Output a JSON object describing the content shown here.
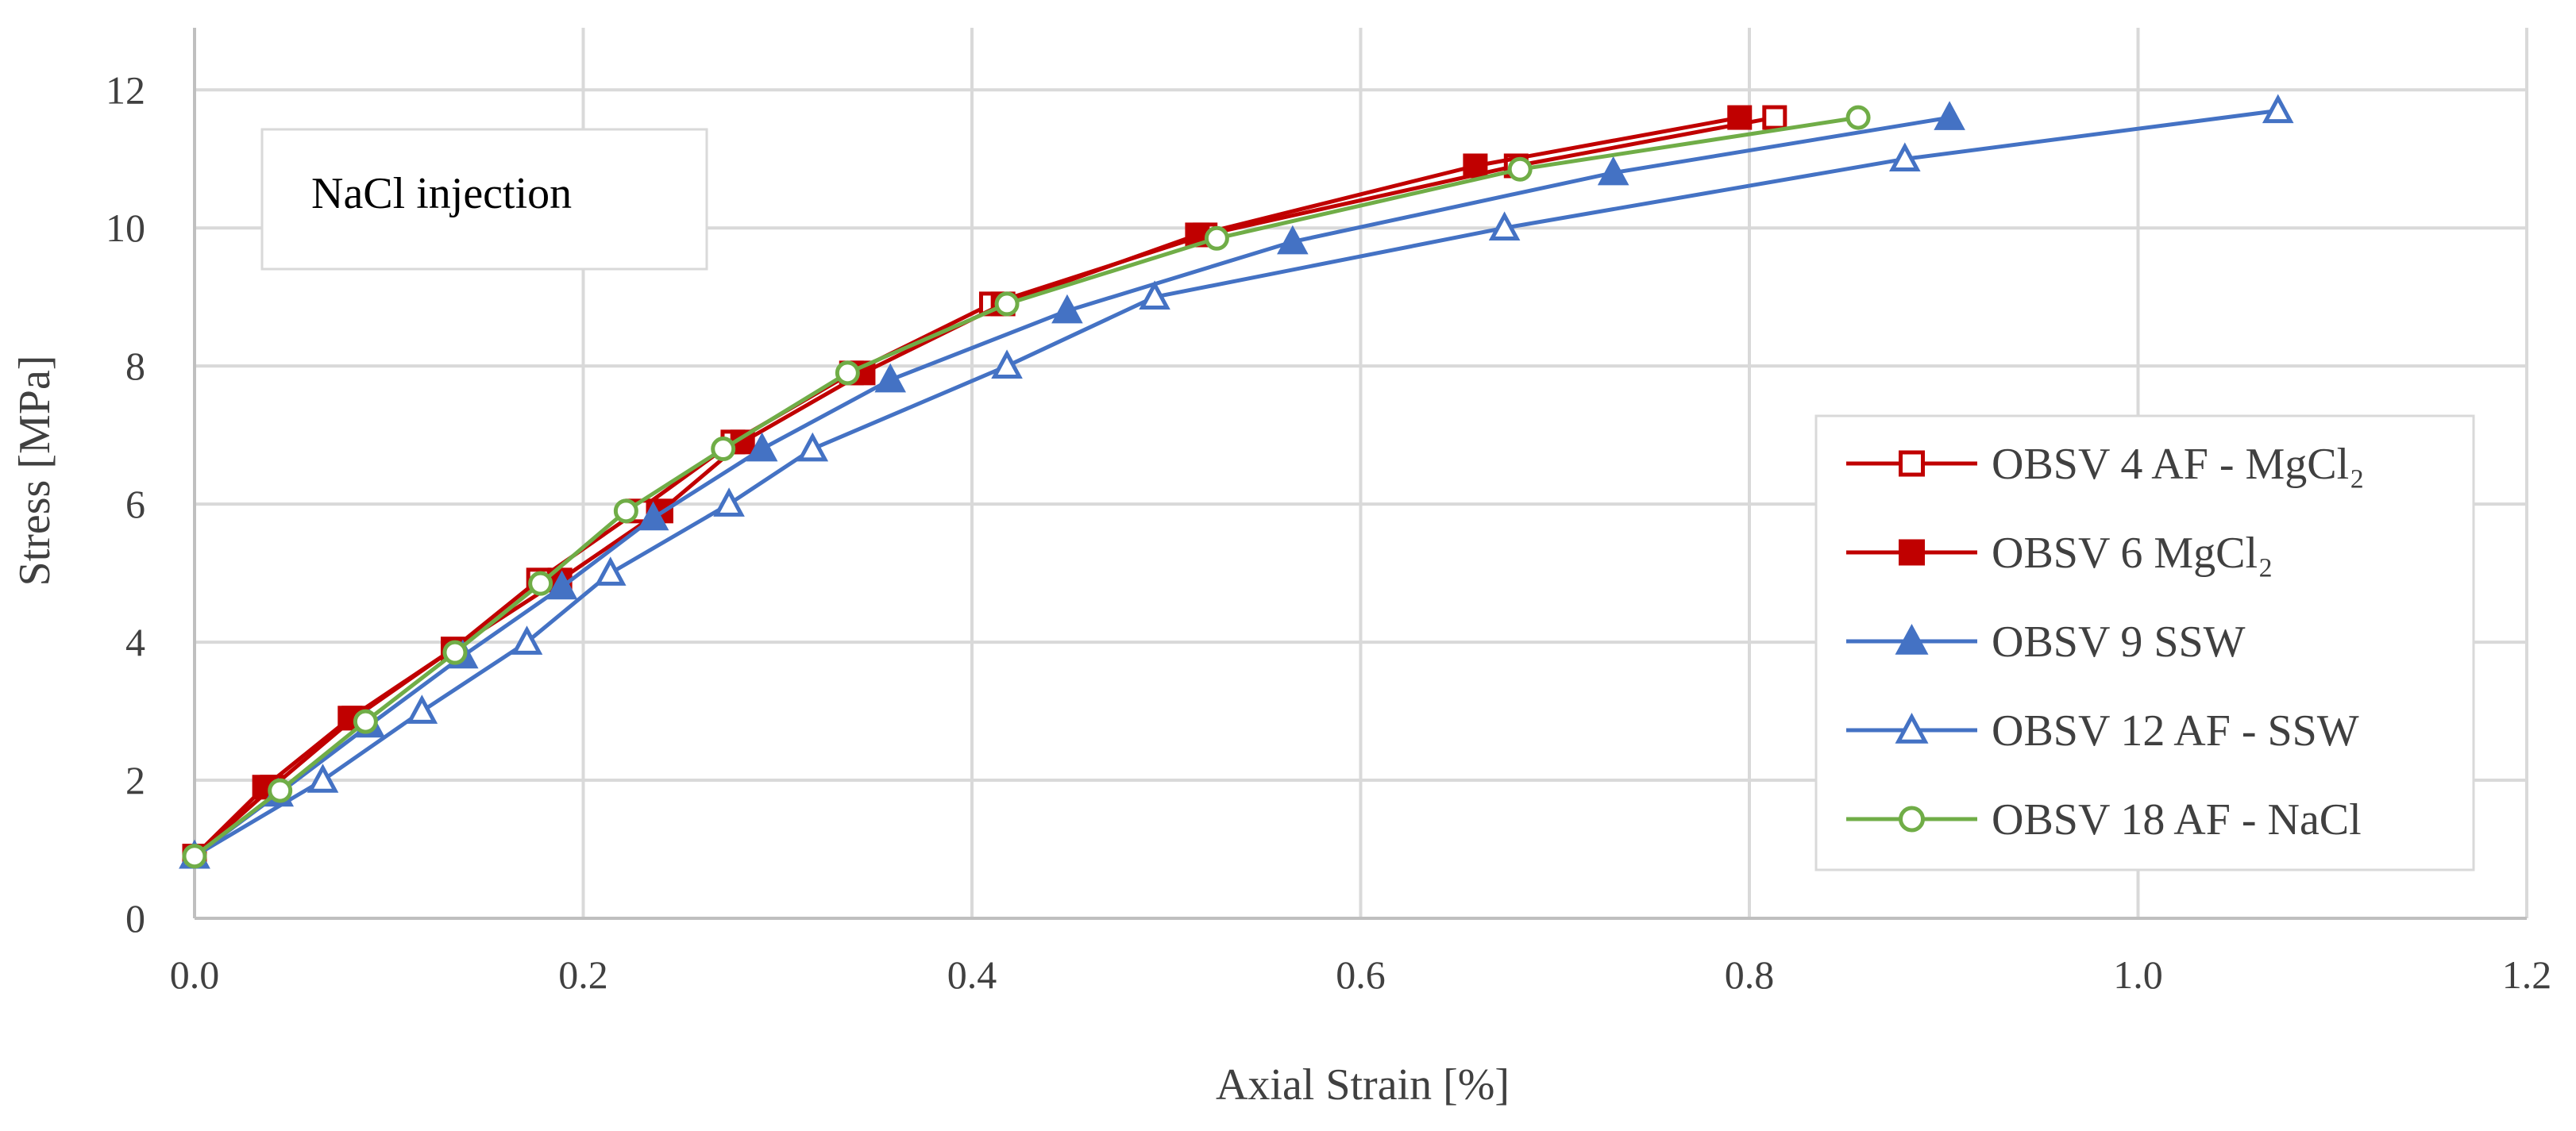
{
  "chart_data": {
    "type": "line",
    "title": "",
    "xlabel": "Axial Strain [%]",
    "ylabel": "Stress [MPa]",
    "xlim": [
      0.0,
      1.2
    ],
    "ylim": [
      0,
      12.9
    ],
    "xticks": [
      0.0,
      0.2,
      0.4,
      0.6,
      0.8,
      1.0,
      1.2
    ],
    "xtick_labels": [
      "0.0",
      "0.2",
      "0.4",
      "0.6",
      "0.8",
      "1.0",
      "1.2"
    ],
    "yticks": [
      0,
      2,
      4,
      6,
      8,
      10,
      12
    ],
    "ytick_labels": [
      "0",
      "2",
      "4",
      "6",
      "8",
      "10",
      "12"
    ],
    "grid": true,
    "legend_position": "right",
    "annotation": "NaCl injection",
    "series": [
      {
        "name": "OBSV 4 AF - MgCl₂",
        "color": "#c00000",
        "marker": "square-open",
        "x": [
          0.0,
          0.04,
          0.082,
          0.133,
          0.177,
          0.228,
          0.277,
          0.338,
          0.41,
          0.52,
          0.68,
          0.813
        ],
        "y": [
          0.9,
          1.9,
          2.9,
          3.9,
          4.9,
          5.9,
          6.9,
          7.9,
          8.9,
          9.9,
          10.9,
          11.6
        ]
      },
      {
        "name": "OBSV 6 MgCl₂",
        "color": "#c00000",
        "marker": "square-filled",
        "x": [
          0.0,
          0.036,
          0.08,
          0.133,
          0.188,
          0.24,
          0.282,
          0.344,
          0.416,
          0.516,
          0.659,
          0.795
        ],
        "y": [
          0.9,
          1.9,
          2.9,
          3.9,
          4.9,
          5.9,
          6.9,
          7.9,
          8.9,
          9.9,
          10.9,
          11.6
        ]
      },
      {
        "name": "OBSV 9 SSW",
        "color": "#4472c4",
        "marker": "triangle-filled",
        "x": [
          0.0,
          0.043,
          0.09,
          0.138,
          0.189,
          0.236,
          0.292,
          0.358,
          0.449,
          0.565,
          0.73,
          0.903
        ],
        "y": [
          0.9,
          1.8,
          2.8,
          3.8,
          4.8,
          5.8,
          6.8,
          7.8,
          8.8,
          9.8,
          10.8,
          11.6
        ]
      },
      {
        "name": "OBSV 12 AF - SSW",
        "color": "#4472c4",
        "marker": "triangle-open",
        "x": [
          0.0,
          0.066,
          0.117,
          0.171,
          0.214,
          0.275,
          0.318,
          0.418,
          0.494,
          0.674,
          0.88,
          1.072
        ],
        "y": [
          0.9,
          2.0,
          3.0,
          4.0,
          5.0,
          6.0,
          6.8,
          8.0,
          9.0,
          10.0,
          11.0,
          11.7
        ]
      },
      {
        "name": "OBSV 18 AF - NaCl",
        "color": "#70ad47",
        "marker": "circle-open",
        "x": [
          0.0,
          0.044,
          0.088,
          0.134,
          0.178,
          0.222,
          0.272,
          0.336,
          0.418,
          0.526,
          0.682,
          0.856
        ],
        "y": [
          0.9,
          1.85,
          2.85,
          3.85,
          4.85,
          5.9,
          6.8,
          7.9,
          8.9,
          9.85,
          10.85,
          11.6
        ]
      }
    ]
  }
}
